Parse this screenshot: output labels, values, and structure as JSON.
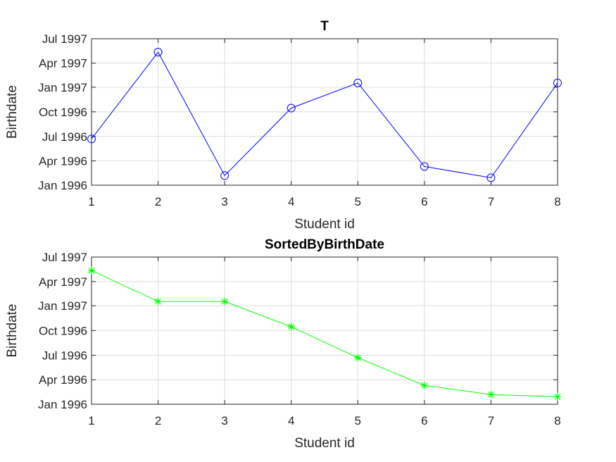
{
  "chart_data": [
    {
      "type": "line",
      "title": "T",
      "xlabel": "Student id",
      "ylabel": "Birthdate",
      "xlim": [
        1,
        8
      ],
      "ylim": [
        "1996-01-01",
        "1997-07-01"
      ],
      "x_ticks": [
        "1",
        "2",
        "3",
        "4",
        "5",
        "6",
        "7",
        "8"
      ],
      "y_ticks": [
        {
          "date": "1996-01-01",
          "label": "Jan 1996"
        },
        {
          "date": "1996-04-01",
          "label": "Apr 1996"
        },
        {
          "date": "1996-07-01",
          "label": "Jul 1996"
        },
        {
          "date": "1996-10-01",
          "label": "Oct 1996"
        },
        {
          "date": "1997-01-01",
          "label": "Jan 1997"
        },
        {
          "date": "1997-04-01",
          "label": "Apr 1997"
        },
        {
          "date": "1997-07-01",
          "label": "Jul 1997"
        }
      ],
      "grid": true,
      "series": [
        {
          "color": "#0000ff",
          "marker": "circle",
          "x": [
            1,
            2,
            3,
            4,
            5,
            6,
            7,
            8
          ],
          "y": [
            "1996-06-22",
            "1997-05-12",
            "1996-02-06",
            "1996-10-15",
            "1997-01-17",
            "1996-03-11",
            "1996-01-29",
            "1997-01-17"
          ]
        }
      ]
    },
    {
      "type": "line",
      "title": "SortedByBirthDate",
      "xlabel": "Student id",
      "ylabel": "Birthdate",
      "xlim": [
        1,
        8
      ],
      "ylim": [
        "1996-01-01",
        "1997-07-01"
      ],
      "x_ticks": [
        "1",
        "2",
        "3",
        "4",
        "5",
        "6",
        "7",
        "8"
      ],
      "y_ticks": [
        {
          "date": "1996-01-01",
          "label": "Jan 1996"
        },
        {
          "date": "1996-04-01",
          "label": "Apr 1996"
        },
        {
          "date": "1996-07-01",
          "label": "Jul 1996"
        },
        {
          "date": "1996-10-01",
          "label": "Oct 1996"
        },
        {
          "date": "1997-01-01",
          "label": "Jan 1997"
        },
        {
          "date": "1997-04-01",
          "label": "Apr 1997"
        },
        {
          "date": "1997-07-01",
          "label": "Jul 1997"
        }
      ],
      "grid": true,
      "series": [
        {
          "color": "#00ff00",
          "marker": "asterisk",
          "x": [
            1,
            2,
            3,
            4,
            5,
            6,
            7,
            8
          ],
          "y": [
            "1997-05-12",
            "1997-01-17",
            "1997-01-17",
            "1996-10-15",
            "1996-06-22",
            "1996-03-11",
            "1996-02-06",
            "1996-01-29"
          ]
        }
      ]
    }
  ]
}
